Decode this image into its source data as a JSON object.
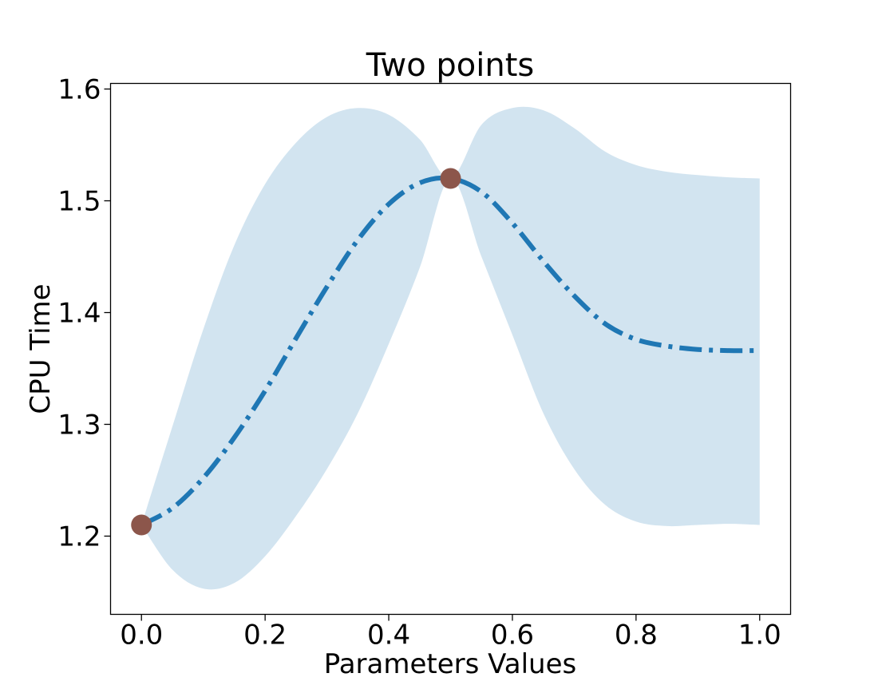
{
  "chart_data": {
    "type": "line",
    "title": "Two points",
    "xlabel": "Parameters Values",
    "ylabel": "CPU Time",
    "xlim": [
      -0.05,
      1.05
    ],
    "ylim": [
      1.13,
      1.605
    ],
    "xticks": [
      0.0,
      0.2,
      0.4,
      0.6,
      0.8,
      1.0
    ],
    "xtick_labels": [
      "0.0",
      "0.2",
      "0.4",
      "0.6",
      "0.8",
      "1.0"
    ],
    "yticks": [
      1.2,
      1.3,
      1.4,
      1.5,
      1.6
    ],
    "ytick_labels": [
      "1.2",
      "1.3",
      "1.4",
      "1.5",
      "1.6"
    ],
    "grid": false,
    "colors": {
      "mean_line": "#1f77b4",
      "band": "#1f77b4",
      "band_opacity": 0.2,
      "points": "#8c564b"
    },
    "series": [
      {
        "kind": "mean",
        "style": "dashdot",
        "x": [
          0.0,
          0.05,
          0.1,
          0.15,
          0.2,
          0.25,
          0.3,
          0.35,
          0.4,
          0.45,
          0.5,
          0.55,
          0.6,
          0.65,
          0.7,
          0.75,
          0.8,
          0.85,
          0.9,
          0.95,
          1.0
        ],
        "y": [
          1.21,
          1.225,
          1.252,
          1.288,
          1.33,
          1.377,
          1.423,
          1.465,
          1.497,
          1.516,
          1.52,
          1.508,
          1.48,
          1.446,
          1.415,
          1.39,
          1.376,
          1.37,
          1.367,
          1.366,
          1.366
        ]
      },
      {
        "kind": "confidence_band",
        "x": [
          0.0,
          0.05,
          0.1,
          0.15,
          0.2,
          0.25,
          0.3,
          0.35,
          0.4,
          0.45,
          0.5,
          0.55,
          0.6,
          0.65,
          0.7,
          0.75,
          0.8,
          0.85,
          0.9,
          0.95,
          1.0
        ],
        "upper": [
          1.21,
          1.298,
          1.385,
          1.46,
          1.515,
          1.552,
          1.575,
          1.583,
          1.577,
          1.555,
          1.52,
          1.568,
          1.583,
          1.581,
          1.565,
          1.544,
          1.532,
          1.526,
          1.523,
          1.521,
          1.52
        ],
        "lower": [
          1.21,
          1.17,
          1.153,
          1.158,
          1.182,
          1.218,
          1.26,
          1.31,
          1.372,
          1.44,
          1.52,
          1.45,
          1.38,
          1.31,
          1.26,
          1.228,
          1.213,
          1.209,
          1.21,
          1.211,
          1.21
        ]
      }
    ],
    "points": [
      {
        "x": 0.0,
        "y": 1.21
      },
      {
        "x": 0.5,
        "y": 1.52
      }
    ]
  }
}
